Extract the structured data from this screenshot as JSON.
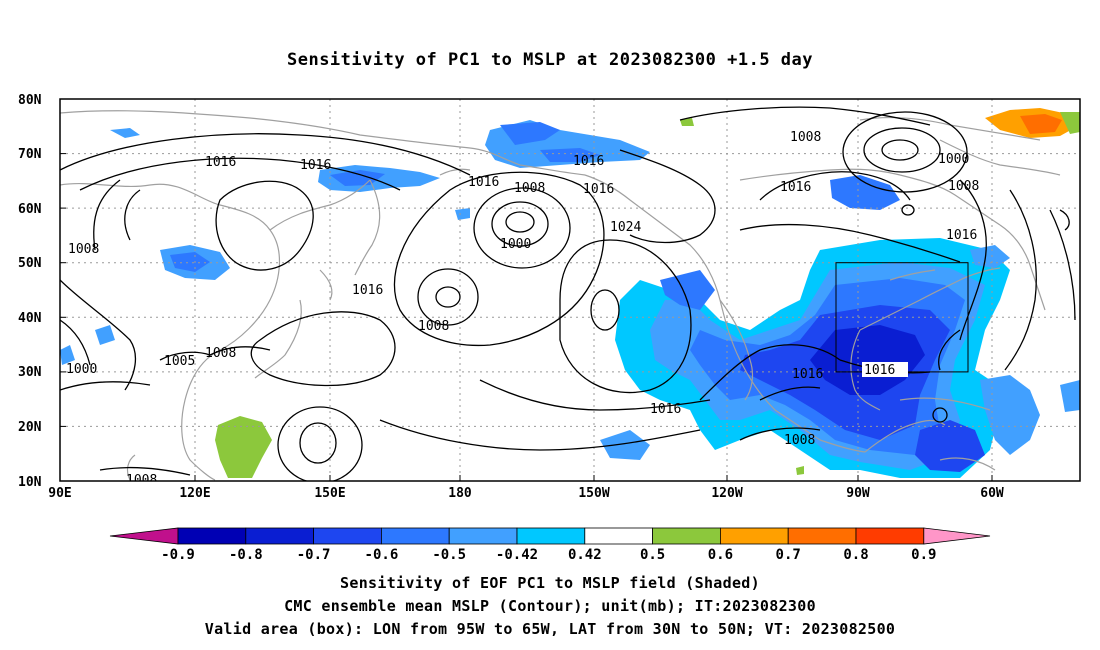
{
  "title": "Sensitivity of PC1 to MSLP at 2023082300 +1.5 day",
  "axes": {
    "lat_labels": [
      "80N",
      "70N",
      "60N",
      "50N",
      "40N",
      "30N",
      "20N",
      "10N"
    ],
    "lon_labels": [
      "90E",
      "120E",
      "150E",
      "180",
      "150W",
      "120W",
      "90W",
      "60W"
    ]
  },
  "contour_labels": [
    {
      "id": "c1",
      "text": "1016"
    },
    {
      "id": "c2",
      "text": "1016"
    },
    {
      "id": "c3",
      "text": "1016"
    },
    {
      "id": "c4",
      "text": "1016"
    },
    {
      "id": "c5",
      "text": "1008"
    },
    {
      "id": "c6",
      "text": "1000"
    },
    {
      "id": "c7",
      "text": "1024"
    },
    {
      "id": "c8",
      "text": "1016"
    },
    {
      "id": "c9",
      "text": "1008"
    },
    {
      "id": "c10",
      "text": "1000"
    },
    {
      "id": "c11",
      "text": "1016"
    },
    {
      "id": "c12",
      "text": "1008"
    },
    {
      "id": "c13",
      "text": "1016"
    },
    {
      "id": "c14",
      "text": "1008"
    },
    {
      "id": "c15",
      "text": "1016"
    },
    {
      "id": "c16",
      "text": "1016"
    },
    {
      "id": "c17",
      "text": "1008"
    },
    {
      "id": "c18",
      "text": "1016"
    },
    {
      "id": "c19",
      "text": "1008"
    },
    {
      "id": "c20",
      "text": "1005"
    },
    {
      "id": "c21",
      "text": "1000"
    },
    {
      "id": "c22",
      "text": "1008"
    },
    {
      "id": "c23",
      "text": "1008"
    }
  ],
  "colorbar": {
    "labels": [
      "-0.9",
      "-0.8",
      "-0.7",
      "-0.6",
      "-0.5",
      "-0.42",
      "0.42",
      "0.5",
      "0.6",
      "0.7",
      "0.8",
      "0.9"
    ],
    "colors": [
      "#c0108c",
      "#0000b4",
      "#0a1ed2",
      "#1e46f0",
      "#2d78ff",
      "#41a0ff",
      "#00c8ff",
      "#ffffff",
      "#8cc83c",
      "#ffa000",
      "#ff6e00",
      "#ff3c00",
      "#ff0000",
      "#ff96c8"
    ]
  },
  "captions": {
    "line1": "Sensitivity of EOF PC1 to MSLP field (Shaded)",
    "line2": "CMC ensemble mean MSLP (Contour); unit(mb); IT:2023082300",
    "line3": "Valid area (box): LON from 95W to 65W, LAT from 30N to 50N; VT: 2023082500"
  }
}
